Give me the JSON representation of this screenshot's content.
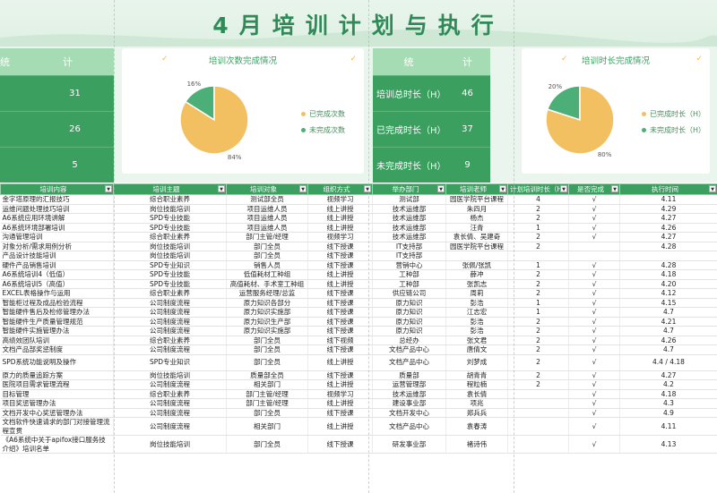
{
  "page_title": "4月培训计划与执行",
  "stats_left": {
    "header": [
      "统",
      "计"
    ],
    "rows": [
      {
        "label": "",
        "value": "31"
      },
      {
        "label": "",
        "value": "26"
      },
      {
        "label": "",
        "value": "5"
      }
    ]
  },
  "stats_right": {
    "header": [
      "统",
      "计"
    ],
    "rows": [
      {
        "label": "培训总时长（H）",
        "value": "46"
      },
      {
        "label": "已完成时长（H）",
        "value": "37"
      },
      {
        "label": "未完成时长（H）",
        "value": "9"
      }
    ]
  },
  "chart_data": [
    {
      "type": "pie",
      "title": "培训次数完成情况",
      "labels": [
        "已完成次数",
        "未完成次数"
      ],
      "values": [
        84,
        16
      ],
      "data_labels": [
        "84%",
        "16%"
      ],
      "colors": [
        "#f2c061",
        "#4caf78"
      ],
      "legend": "right"
    },
    {
      "type": "pie",
      "title": "培训时长完成情况",
      "labels": [
        "已完成时长（H）",
        "未完成时长（H）"
      ],
      "values": [
        80,
        20
      ],
      "data_labels": [
        "80%",
        "20%"
      ],
      "colors": [
        "#f2c061",
        "#4caf78"
      ],
      "legend": "right"
    }
  ],
  "table": {
    "headers": [
      "培训内容",
      "培训主题",
      "培训对象",
      "组织方式",
      "举办部门",
      "培训老师",
      "计划培训时长（H）",
      "是否完成",
      "执行时间"
    ],
    "rows": [
      [
        "金字塔原理的汇报技巧",
        "综合职业素养",
        "测试部全员",
        "视频学习",
        "测试部",
        "园医学院平台课程",
        "4",
        "√",
        "4.11"
      ],
      [
        "运维问题处理技巧培训",
        "岗位技能培训",
        "项目运维人员",
        "线上讲授",
        "技术运维部",
        "朱四月",
        "2",
        "√",
        "4.29"
      ],
      [
        "A6系统应用环境讲解",
        "SPD专业技能",
        "项目运维人员",
        "线上讲授",
        "技术运维部",
        "杨杰",
        "2",
        "√",
        "4.27"
      ],
      [
        "A6系统环境部署培训",
        "SPD专业技能",
        "项目运维人员",
        "线上讲授",
        "技术运维部",
        "汪青",
        "1",
        "√",
        "4.26"
      ],
      [
        "沟通管理培训",
        "综合职业素养",
        "部门主管/经理",
        "视频学习",
        "技术运维部",
        "袁长倩、吴建奇",
        "2",
        "√",
        "4.27"
      ],
      [
        "对象分析/需求用例分析",
        "岗位技能培训",
        "部门全员",
        "线下授课",
        "IT支持部",
        "园医学院平台课程",
        "2",
        "",
        "4.28"
      ],
      [
        "产品设计技能培训",
        "岗位技能培训",
        "部门全员",
        "线下授课",
        "IT支持部",
        "",
        "",
        "",
        ""
      ],
      [
        "硬件产品销售培训",
        "SPD专业知识",
        "销售人员",
        "线下授课",
        "营销中心",
        "张佩/张凯",
        "1",
        "√",
        "4.28"
      ],
      [
        "A6系统培训4（低值）",
        "SPD专业技能",
        "低值耗材工种组",
        "线上讲授",
        "工种部",
        "薛冲",
        "2",
        "√",
        "4.18"
      ],
      [
        "A6系统培训5（高值）",
        "SPD专业技能",
        "高值耗材、手术室工种组",
        "线上讲授",
        "工种部",
        "张凯志",
        "2",
        "√",
        "4.20"
      ],
      [
        "EXCEL表格操作与运用",
        "综合职业素养",
        "运营服务经理/总监",
        "线下授课",
        "供应链公司",
        "周莉",
        "2",
        "√",
        "4.12"
      ],
      [
        "智能柜过程及成品检验流程",
        "公司制度流程",
        "原力知识各部分",
        "线下授课",
        "原力知识",
        "彭浩",
        "1",
        "√",
        "4.15"
      ],
      [
        "智能硬件售后及检修管理办法",
        "公司制度流程",
        "原力知识实施部",
        "线下授课",
        "原力知识",
        "江志宏",
        "1",
        "√",
        "4.7"
      ],
      [
        "智能硬件生产质量管理规范",
        "公司制度流程",
        "原力知识生产部",
        "线下授课",
        "原力知识",
        "彭浩",
        "2",
        "√",
        "4.21"
      ],
      [
        "智能硬件实施管理办法",
        "公司制度流程",
        "原力知识实施部",
        "线下授课",
        "原力知识",
        "彭浩",
        "2",
        "√",
        "4.7"
      ],
      [
        "高绩效团队培训",
        "综合职业素养",
        "部门全员",
        "线下视频",
        "总经办",
        "张文君",
        "2",
        "√",
        "4.26"
      ],
      [
        "文档产品部奖惩制度",
        "公司制度流程",
        "部门全员",
        "线下授课",
        "文档产品中心",
        "唐倩文",
        "2",
        "√",
        "4.7"
      ],
      [
        "SPD系统功能说明及操作",
        "SPD专业知识",
        "部门全员",
        "线上讲授",
        "文档产品中心",
        "刘梦成",
        "2",
        "√",
        "4.4 / 4.18"
      ],
      [
        "原力的质量追踪方案",
        "岗位技能培训",
        "质量部全员",
        "线下授课",
        "质量部",
        "胡青青",
        "2",
        "√",
        "4.27"
      ],
      [
        "医院项目需求管理流程",
        "公司制度流程",
        "相关部门",
        "线上讲授",
        "运营管理部",
        "程粒楠",
        "2",
        "√",
        "4.2"
      ],
      [
        "目标管理",
        "综合职业素养",
        "部门主管/经理",
        "视频学习",
        "技术运维部",
        "袁长倩",
        "",
        "√",
        "4.18"
      ],
      [
        "项目奖惩管理办法",
        "公司制度流程",
        "部门主管/经理",
        "线上讲授",
        "建设事业部",
        "项兆",
        "",
        "√",
        "4.3"
      ],
      [
        "文档开发中心奖惩管理办法",
        "公司制度流程",
        "部门全员",
        "线下授课",
        "文档开发中心",
        "郑兵兵",
        "",
        "√",
        "4.9"
      ],
      [
        "文档软件快速请求的部门对接管理流程宣贯",
        "公司制度流程",
        "相关部门",
        "线上讲授",
        "文档产品中心",
        "袁春涛",
        "",
        "√",
        "4.11"
      ],
      [
        "《A6系统中关于apifox接口服务技介绍》培训名单",
        "岗位技能培训",
        "部门全员",
        "线下授课",
        "研发事业部",
        "褚诗伟",
        "",
        "√",
        "4.13"
      ]
    ]
  }
}
